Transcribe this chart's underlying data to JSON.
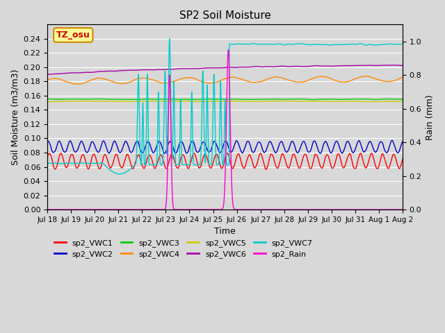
{
  "title": "SP2 Soil Moisture",
  "ylabel_left": "Soil Moisture (m3/m3)",
  "ylabel_right": "Rain (mm)",
  "xlabel": "Time",
  "annotation": "TZ_osu",
  "ylim_left": [
    0.0,
    0.26
  ],
  "ylim_right": [
    0.0,
    1.1
  ],
  "yticks_left": [
    0.0,
    0.02,
    0.04,
    0.06,
    0.08,
    0.1,
    0.12,
    0.14,
    0.16,
    0.18,
    0.2,
    0.22,
    0.24
  ],
  "yticks_right": [
    0.0,
    0.2,
    0.4,
    0.6,
    0.8,
    1.0
  ],
  "xtick_labels": [
    "Jul 18",
    "Jul 19",
    "Jul 20",
    "Jul 21",
    "Jul 22",
    "Jul 23",
    "Jul 24",
    "Jul 25",
    "Jul 26",
    "Jul 27",
    "Jul 28",
    "Jul 29",
    "Jul 30",
    "Jul 31",
    "Aug 1",
    "Aug 2"
  ],
  "vwc1_color": "#ff0000",
  "vwc2_color": "#0000cc",
  "vwc3_color": "#00cc00",
  "vwc4_color": "#ff8800",
  "vwc5_color": "#cccc00",
  "vwc6_color": "#aa00aa",
  "vwc7_color": "#00cccc",
  "rain_color": "#ff00cc",
  "bg_color": "#d8d8d8",
  "grid_color": "#ffffff",
  "annot_text": "TZ_osu",
  "annot_fg": "#cc0000",
  "annot_bg": "#ffff99",
  "annot_edge": "#cc8800"
}
